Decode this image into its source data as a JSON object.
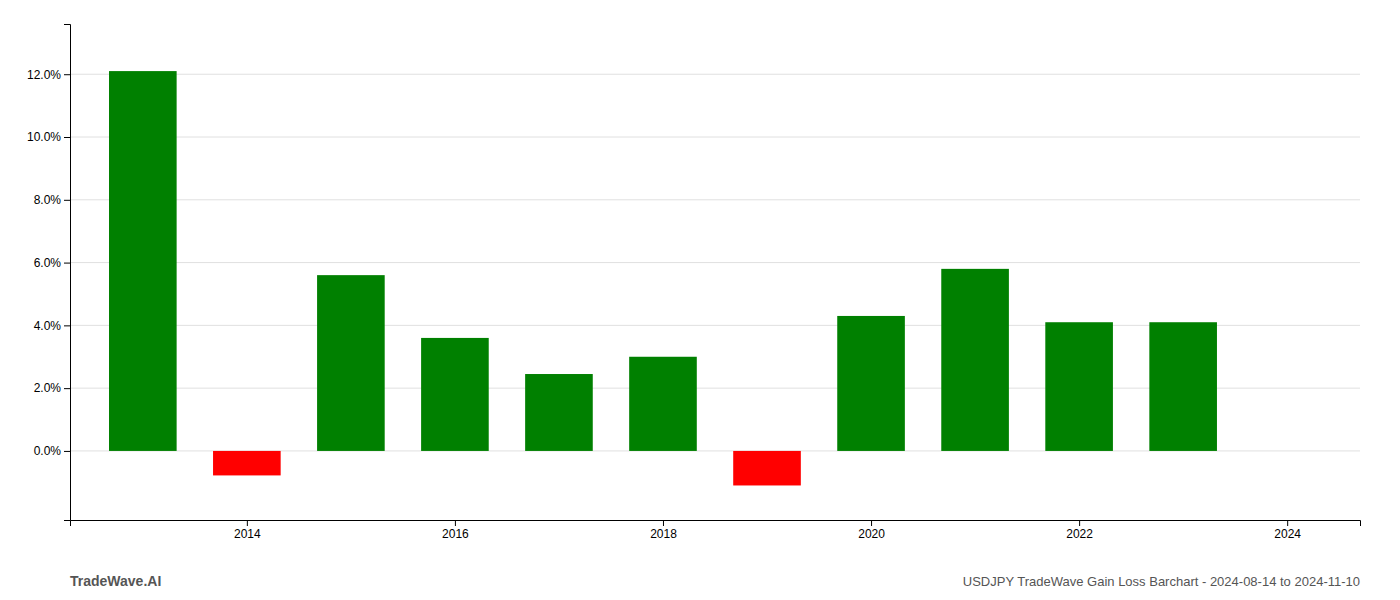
{
  "chart_data": {
    "type": "bar",
    "title": "USDJPY TradeWave Gain Loss Barchart - 2024-08-14 to 2024-11-10",
    "annotations": [
      "TradeWave.AI"
    ],
    "x": [
      2013,
      2014,
      2015,
      2016,
      2017,
      2018,
      2019,
      2020,
      2021,
      2022,
      2023
    ],
    "values": [
      0.121,
      -0.0078,
      0.056,
      0.036,
      0.0245,
      0.03,
      -0.011,
      0.043,
      0.058,
      0.041,
      0.041
    ],
    "colors": [
      "#008000",
      "#ff0000",
      "#008000",
      "#008000",
      "#008000",
      "#008000",
      "#ff0000",
      "#008000",
      "#008000",
      "#008000",
      "#008000"
    ],
    "xlim": [
      2012.3,
      2024.7
    ],
    "xticks": [
      2014,
      2016,
      2018,
      2020,
      2022,
      2024
    ],
    "ylim": [
      -0.022,
      0.136
    ],
    "yticks": [
      {
        "value": 0.0,
        "label": "0.0%"
      },
      {
        "value": 0.02,
        "label": "2.0%"
      },
      {
        "value": 0.04,
        "label": "4.0%"
      },
      {
        "value": 0.06,
        "label": "6.0%"
      },
      {
        "value": 0.08,
        "label": "8.0%"
      },
      {
        "value": 0.1,
        "label": "10.0%"
      },
      {
        "value": 0.12,
        "label": "12.0%"
      }
    ],
    "grid": true
  }
}
